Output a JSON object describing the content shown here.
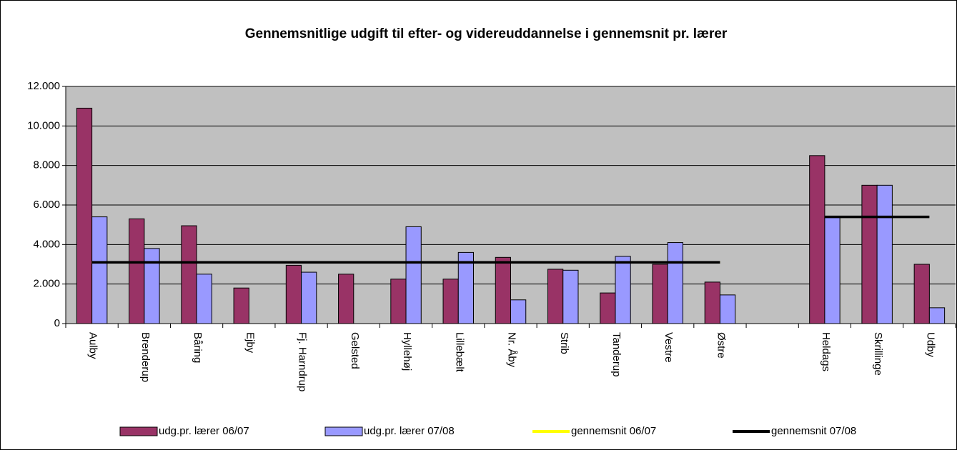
{
  "chart_data": {
    "type": "bar",
    "title": "Gennemsnitlige udgift til efter- og videreuddannelse i gennemsnit pr. lærer",
    "categories": [
      "Aulby",
      "Brenderup",
      "Båring",
      "Ejby",
      "Fj. Harndrup",
      "Gelsted",
      "Hyllehøj",
      "Lillebælt",
      "Nr. Åby",
      "Strib",
      "Tanderup",
      "Vestre",
      "Østre",
      null,
      "Heldags",
      "Skrillinge",
      "Udby"
    ],
    "series": [
      {
        "name": "udg.pr. lærer 06/07",
        "type": "bar",
        "color": "#993366",
        "values": [
          10900,
          5300,
          4950,
          1800,
          2950,
          2500,
          2250,
          2250,
          3350,
          2750,
          1550,
          3000,
          2100,
          null,
          8500,
          7000,
          3000
        ]
      },
      {
        "name": "udg.pr. lærer 07/08",
        "type": "bar",
        "color": "#9999ff",
        "values": [
          5400,
          3800,
          2500,
          null,
          2600,
          null,
          4900,
          3600,
          1200,
          2700,
          3400,
          4100,
          1450,
          null,
          5400,
          7000,
          800
        ]
      },
      {
        "name": "gennemsnit 06/07",
        "type": "line",
        "color": "#ffff00",
        "values": [
          3100,
          3100,
          3100,
          3100,
          3100,
          3100,
          3100,
          3100,
          3100,
          3100,
          3100,
          3100,
          3100,
          null,
          null,
          null,
          null
        ]
      },
      {
        "name": "gennemsnit 07/08",
        "type": "line",
        "color": "#000000",
        "values": [
          3100,
          3100,
          3100,
          3100,
          3100,
          3100,
          3100,
          3100,
          3100,
          3100,
          3100,
          3100,
          3100,
          null,
          5400,
          5400,
          5400
        ]
      }
    ],
    "ylim": [
      0,
      12000
    ],
    "yticks": [
      0,
      {
        "value": 2000,
        "label": "2.000"
      },
      {
        "value": 4000,
        "label": "4.000"
      },
      {
        "value": 6000,
        "label": "6.000"
      },
      {
        "value": 8000,
        "label": "8.000"
      },
      {
        "value": 10000,
        "label": "10.000"
      },
      {
        "value": 12000,
        "label": "12.000"
      }
    ],
    "grid": true,
    "legend": "bottom",
    "plot_background": "#c0c0c0"
  }
}
